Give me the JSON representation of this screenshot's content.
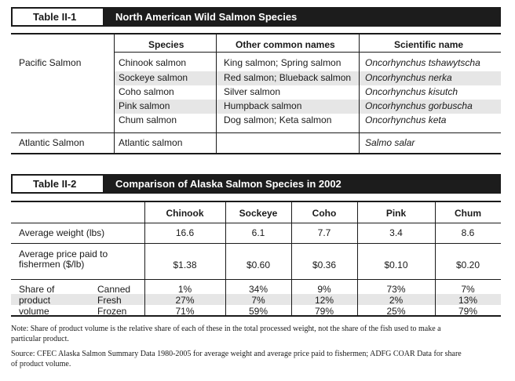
{
  "table1": {
    "label": "Table II-1",
    "title": "North American Wild Salmon Species",
    "headers": [
      "Species",
      "Other common names",
      "Scientific name"
    ],
    "groups": [
      {
        "name": "Pacific Salmon",
        "rows": [
          {
            "species": "Chinook salmon",
            "common": "King salmon; Spring salmon",
            "scientific": "Oncorhynchus tshawytscha"
          },
          {
            "species": "Sockeye salmon",
            "common": "Red salmon; Blueback salmon",
            "scientific": "Oncorhynchus nerka"
          },
          {
            "species": "Coho salmon",
            "common": "Silver salmon",
            "scientific": "Oncorhynchus kisutch"
          },
          {
            "species": "Pink salmon",
            "common": "Humpback salmon",
            "scientific": "Oncorhynchus gorbuscha"
          },
          {
            "species": "Chum salmon",
            "common": "Dog salmon; Keta salmon",
            "scientific": "Oncorhynchus keta"
          }
        ]
      },
      {
        "name": "Atlantic Salmon",
        "rows": [
          {
            "species": "Atlantic salmon",
            "common": "",
            "scientific": "Salmo salar"
          }
        ]
      }
    ]
  },
  "table2": {
    "label": "Table II-2",
    "title": "Comparison of Alaska Salmon Species in 2002",
    "columns": [
      "Chinook",
      "Sockeye",
      "Coho",
      "Pink",
      "Chum"
    ],
    "avg_weight_label": "Average weight (lbs)",
    "avg_weight": [
      "16.6",
      "6.1",
      "7.7",
      "3.4",
      "8.6"
    ],
    "avg_price_label_line1": "Average price paid to",
    "avg_price_label_line2": "fishermen ($/lb)",
    "avg_price": [
      "$1.38",
      "$0.60",
      "$0.36",
      "$0.10",
      "$0.20"
    ],
    "share_label_line1": "Share of",
    "share_label_line2": "product",
    "share_label_line3": "volume",
    "share_rows": [
      {
        "label": "Canned",
        "values": [
          "1%",
          "34%",
          "9%",
          "73%",
          "7%"
        ]
      },
      {
        "label": "Fresh",
        "values": [
          "27%",
          "7%",
          "12%",
          "2%",
          "13%"
        ]
      },
      {
        "label": "Frozen",
        "values": [
          "71%",
          "59%",
          "79%",
          "25%",
          "79%"
        ]
      }
    ]
  },
  "notes": {
    "note_line1": "Note: Share of product volume is the relative share of each of these in the total processed weight, not the share of the fish used to make a",
    "note_line2": "particular product.",
    "source_line1": "Source: CFEC Alaska Salmon Summary Data 1980-2005 for average weight and average price paid to fishermen; ADFG COAR Data for share",
    "source_line2": "of product volume."
  }
}
